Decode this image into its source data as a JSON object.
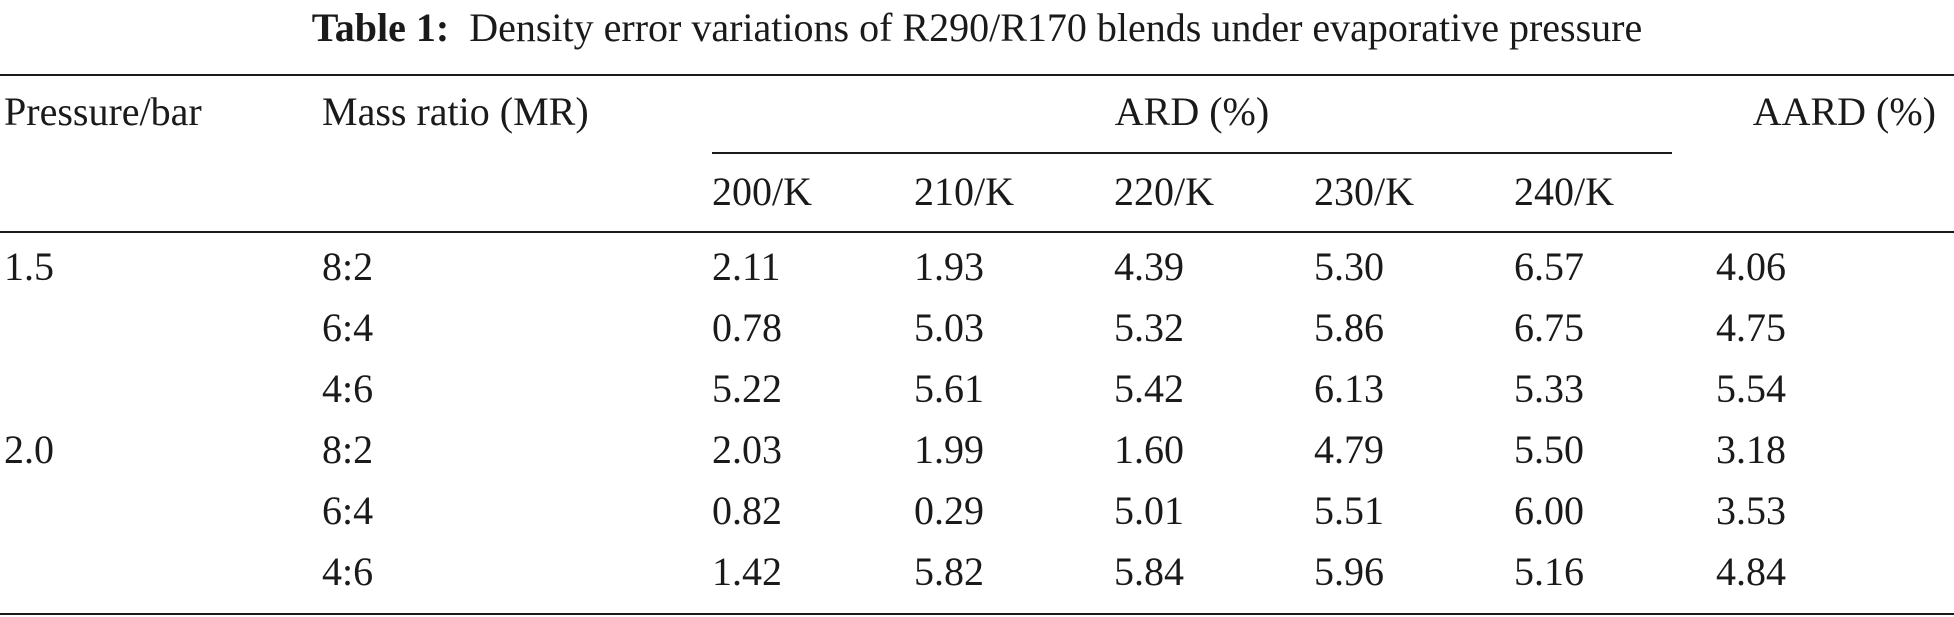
{
  "caption": {
    "label": "Table 1:",
    "text": "Density error variations of R290/R170 blends under evaporative pressure"
  },
  "headers": {
    "pressure": "Pressure/bar",
    "mass_ratio": "Mass ratio (MR)",
    "ard": "ARD (%)",
    "aard": "AARD (%)",
    "temps": [
      "200/K",
      "210/K",
      "220/K",
      "230/K",
      "240/K"
    ]
  },
  "rows": [
    {
      "pressure": "1.5",
      "mr": "8:2",
      "ard": [
        "2.11",
        "1.93",
        "4.39",
        "5.30",
        "6.57"
      ],
      "aard": "4.06"
    },
    {
      "pressure": "",
      "mr": "6:4",
      "ard": [
        "0.78",
        "5.03",
        "5.32",
        "5.86",
        "6.75"
      ],
      "aard": "4.75"
    },
    {
      "pressure": "",
      "mr": "4:6",
      "ard": [
        "5.22",
        "5.61",
        "5.42",
        "6.13",
        "5.33"
      ],
      "aard": "5.54"
    },
    {
      "pressure": "2.0",
      "mr": "8:2",
      "ard": [
        "2.03",
        "1.99",
        "1.60",
        "4.79",
        "5.50"
      ],
      "aard": "3.18"
    },
    {
      "pressure": "",
      "mr": "6:4",
      "ard": [
        "0.82",
        "0.29",
        "5.01",
        "5.51",
        "6.00"
      ],
      "aard": "3.53"
    },
    {
      "pressure": "",
      "mr": "4:6",
      "ard": [
        "1.42",
        "5.82",
        "5.84",
        "5.96",
        "5.16"
      ],
      "aard": "4.84"
    }
  ]
}
